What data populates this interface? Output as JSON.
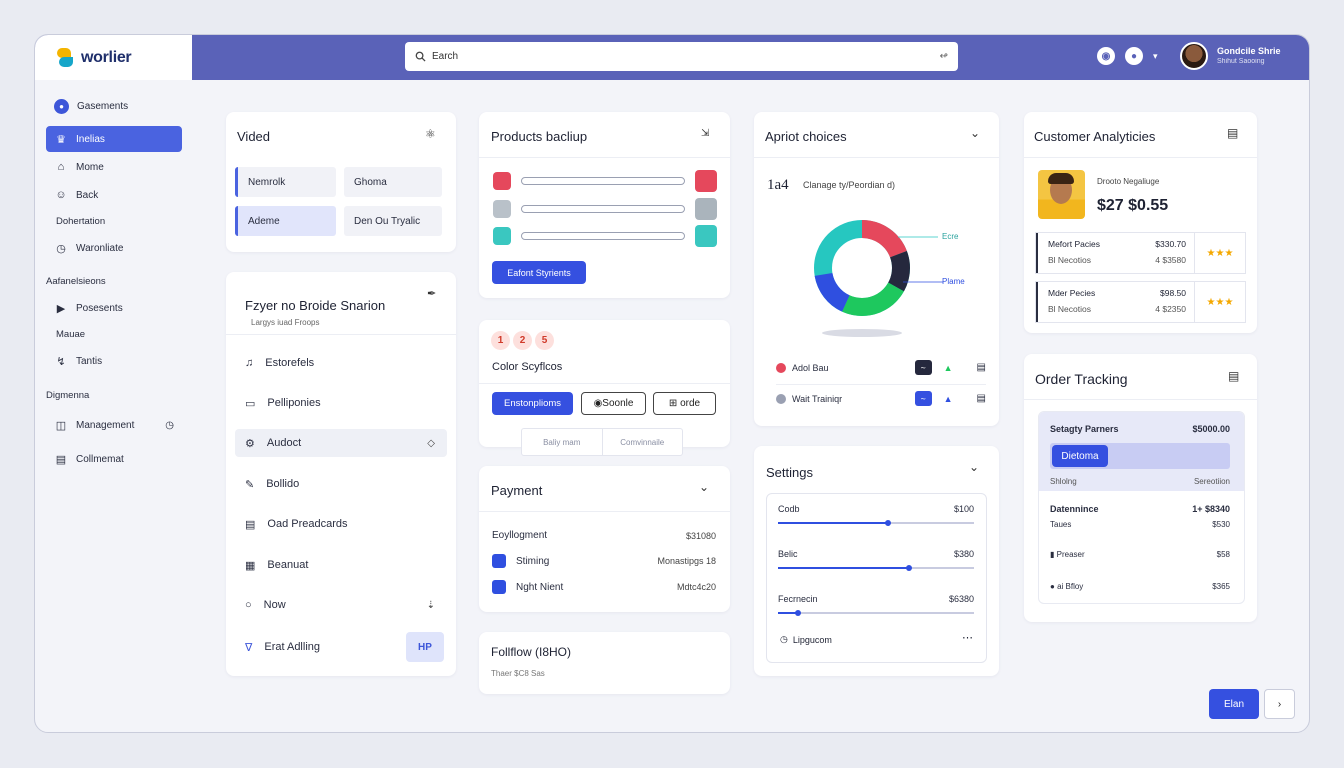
{
  "app": {
    "name": "worlier"
  },
  "search": {
    "placeholder": "Earch"
  },
  "user": {
    "name": "Gondcile Shrie",
    "subtitle": "Shihut Saooing"
  },
  "sidebar": {
    "items": [
      {
        "label": "Gasements",
        "icon": "circle-dot-icon"
      },
      {
        "label": "Inelias",
        "icon": "crown-icon",
        "active": true
      },
      {
        "label": "Mome",
        "icon": "home-icon"
      },
      {
        "label": "Back",
        "icon": "person-icon"
      }
    ],
    "section1": "Dohertation",
    "item5": "Waronliate",
    "section2": "Aafanelsieons",
    "items2": [
      {
        "label": "Posesents",
        "icon": "play-icon"
      }
    ],
    "section3": "Mauae",
    "item7": "Tantis",
    "section4": "Digmenna",
    "items3": [
      {
        "label": "Management",
        "icon": "folder-icon"
      },
      {
        "label": "Collmemat",
        "icon": "calendar-icon"
      }
    ]
  },
  "video_card": {
    "title": "Vided",
    "pills": [
      "Nemrolk",
      "Ghoma",
      "Ademe",
      "Den Ou Tryalic"
    ]
  },
  "briefing_card": {
    "title": "Fzyer no Broide Snarion",
    "subtitle": "Largys iuad Froops",
    "rows": [
      {
        "label": "Estorefels",
        "icon": "bell-icon"
      },
      {
        "label": "Pelliponies",
        "icon": "card-icon"
      },
      {
        "label": "Audoct",
        "icon": "settings-icon"
      },
      {
        "label": "Bollido",
        "icon": "edit-icon"
      },
      {
        "label": "Oad Preadcards",
        "icon": "doc-icon"
      },
      {
        "label": "Beanuat",
        "icon": "grid-icon"
      },
      {
        "label": "Now",
        "icon": "circle-icon"
      },
      {
        "label": "Erat Adlling",
        "icon": "shield-icon",
        "button": "HP"
      }
    ]
  },
  "products_card": {
    "title": "Products bacliup",
    "swatches": [
      {
        "left": "#e5485c",
        "right": "#e5485c"
      },
      {
        "left": "#b9c1c9",
        "right": "#aab4bc"
      },
      {
        "left": "#3ac7c0",
        "right": "#3ac7c0"
      }
    ],
    "button": "Eafont Styrients"
  },
  "color_card": {
    "badges": [
      "1",
      "2",
      "5"
    ],
    "title": "Color Scyflcos",
    "buttons": [
      "Enstonplioms",
      "Soonle",
      "orde"
    ],
    "tabs": [
      "Baliy mam",
      "Comvinnaile"
    ]
  },
  "payment_card": {
    "title": "Payment",
    "header_label": "Eoyllogment",
    "header_value": "$31080",
    "rows": [
      {
        "label": "Stiming",
        "value": "Monastipgs 18"
      },
      {
        "label": "Nght Nient",
        "value": "Mdtc4c20"
      }
    ]
  },
  "follow_card": {
    "title": "Follflow (I8HO)",
    "subtitle": "Thaer $C8 Sas"
  },
  "apriot_card": {
    "title": "Apriot choices",
    "kpi_value": "1a4",
    "kpi_label": "Clanage ty/Peordian d)",
    "donut_labels": [
      "Ecre",
      "Plame"
    ],
    "legend": [
      {
        "label": "Adol Bau",
        "color": "#e5485c",
        "tag": "dark"
      },
      {
        "label": "Wait Trainiqr",
        "color": "#9aa0b2",
        "tag": "blue"
      }
    ]
  },
  "settings_card": {
    "title": "Settings",
    "sliders": [
      {
        "label": "Codb",
        "value": "$100",
        "level": 0.56
      },
      {
        "label": "Belic",
        "value": "$380",
        "level": 0.67
      },
      {
        "label": "Fecrnecin",
        "value": "$6380",
        "level": 0.1
      }
    ],
    "footer": "Lipgucom"
  },
  "customer_card": {
    "title": "Customer Analyticies",
    "profile_label": "Drooto Negaliuge",
    "amount": "$27 $0.55",
    "rows": [
      {
        "name": "Mefort Pacies",
        "sub": "Bl Necotios",
        "v1": "$330.70",
        "v2": "4 $3580"
      },
      {
        "name": "Mder Pecies",
        "sub": "Bl Necotios",
        "v1": "$98.50",
        "v2": "4 $2350"
      }
    ],
    "rating": 3
  },
  "order_card": {
    "title": "Order Tracking",
    "partner_label": "Setagty Parners",
    "partner_value": "$5000.00",
    "button": "Dietoma",
    "status_left": "Shlolng",
    "status_right": "Sereotiion",
    "rows": [
      {
        "label": "Datennince",
        "value": "1+ $8340",
        "bold": true
      },
      {
        "label": "Taues",
        "value": "$530"
      },
      {
        "label": "Preaser",
        "value": "$58"
      },
      {
        "label": "ai Bfloy",
        "value": "$365"
      }
    ]
  },
  "footer_buttons": {
    "primary": "Elan",
    "secondary": "›"
  },
  "colors": {
    "accent": "#3550e0",
    "topbar": "#5a62b8",
    "background": "#f3f4f9",
    "donut": [
      "#e5485c",
      "#25283d",
      "#1ec85e",
      "#2f4fe0",
      "#26c7c0"
    ]
  }
}
